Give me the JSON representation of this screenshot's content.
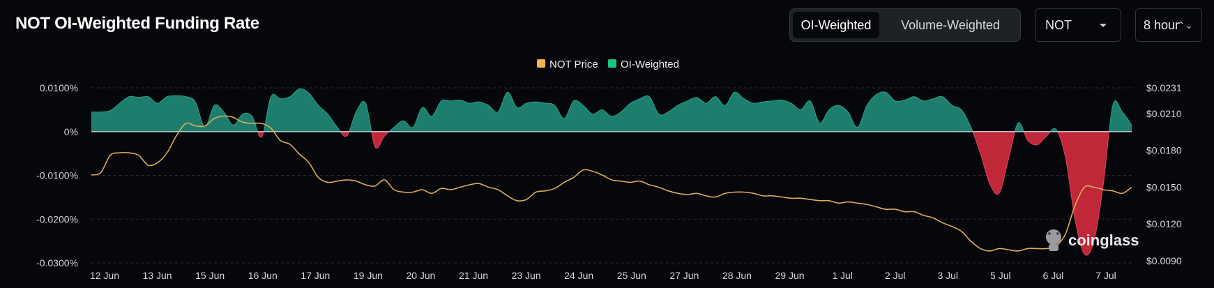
{
  "header": {
    "title": "NOT OI-Weighted Funding Rate",
    "tabs": [
      {
        "label": "OI-Weighted",
        "active": true
      },
      {
        "label": "Volume-Weighted",
        "active": false
      }
    ],
    "coin_select": "NOT",
    "interval_select": "8 hour"
  },
  "watermark": "coinglass",
  "colors": {
    "positive": "#1e7e6d",
    "negative": "#c0283a",
    "price_line": "#dcab5a",
    "legend_price": "#f0b54e",
    "legend_oi": "#17c784"
  },
  "chart_data": {
    "type": "area",
    "legend": [
      "NOT Price",
      "OI-Weighted"
    ],
    "x_tick_labels": [
      "12 Jun",
      "13 Jun",
      "15 Jun",
      "16 Jun",
      "17 Jun",
      "19 Jun",
      "20 Jun",
      "21 Jun",
      "23 Jun",
      "24 Jun",
      "25 Jun",
      "27 Jun",
      "28 Jun",
      "29 Jun",
      "1 Jul",
      "2 Jul",
      "3 Jul",
      "5 Jul",
      "6 Jul",
      "7 Jul"
    ],
    "y_left": {
      "ticks": [
        "0.0100%",
        "0%",
        "-0.0100%",
        "-0.0200%",
        "-0.0300%"
      ],
      "range": [
        -0.03,
        0.01
      ]
    },
    "y_right": {
      "ticks": [
        "$0.0231",
        "$0.0210",
        "$0.0180",
        "$0.0150",
        "$0.0120",
        "$0.0090"
      ]
    },
    "series": [
      {
        "name": "OI-Weighted",
        "unit": "%",
        "values": [
          0.0045,
          0.0045,
          0.0048,
          0.0065,
          0.008,
          0.0078,
          0.008,
          0.0065,
          0.008,
          0.0082,
          0.008,
          0.0068,
          0.001,
          0.006,
          0.0045,
          0.0015,
          0.004,
          0.0035,
          -0.0012,
          0.008,
          0.0075,
          0.008,
          0.0098,
          0.0088,
          0.006,
          0.004,
          0.001,
          -0.001,
          0.0045,
          0.0065,
          -0.0035,
          -0.001,
          0.001,
          0.0025,
          0.001,
          0.0055,
          0.0035,
          0.007,
          0.007,
          0.0072,
          0.0065,
          0.0068,
          0.006,
          0.0045,
          0.009,
          0.0055,
          0.0065,
          0.0068,
          0.0065,
          0.006,
          0.003,
          0.007,
          0.006,
          0.004,
          0.005,
          0.0035,
          0.0045,
          0.0065,
          0.0075,
          0.008,
          0.004,
          0.0045,
          0.006,
          0.007,
          0.0078,
          0.0065,
          0.008,
          0.006,
          0.009,
          0.0075,
          0.0065,
          0.0068,
          0.007,
          0.0072,
          0.0065,
          0.005,
          0.007,
          0.002,
          0.005,
          0.006,
          0.0045,
          0.001,
          0.006,
          0.0085,
          0.009,
          0.007,
          0.0072,
          0.008,
          0.007,
          0.0075,
          0.008,
          0.006,
          0.005,
          0.001,
          -0.005,
          -0.012,
          -0.014,
          -0.006,
          0.002,
          -0.002,
          -0.003,
          -0.001,
          0.0005,
          -0.006,
          -0.02,
          -0.028,
          -0.025,
          -0.012,
          0.006,
          0.0045,
          0.0015
        ],
        "color": "#1e7e6d"
      },
      {
        "name": "NOT Price",
        "unit": "$",
        "values": [
          0.016,
          0.0162,
          0.0176,
          0.0178,
          0.0178,
          0.0176,
          0.0168,
          0.017,
          0.0178,
          0.0192,
          0.0202,
          0.02,
          0.02,
          0.0206,
          0.0208,
          0.0207,
          0.0203,
          0.0202,
          0.0202,
          0.0198,
          0.0188,
          0.0185,
          0.0177,
          0.017,
          0.0158,
          0.0154,
          0.0155,
          0.0156,
          0.0155,
          0.0152,
          0.0151,
          0.0156,
          0.0148,
          0.0146,
          0.0146,
          0.0148,
          0.0145,
          0.0149,
          0.0148,
          0.015,
          0.0152,
          0.0153,
          0.015,
          0.0148,
          0.0143,
          0.0139,
          0.014,
          0.0146,
          0.0147,
          0.0149,
          0.0154,
          0.0158,
          0.0164,
          0.0163,
          0.016,
          0.0156,
          0.0155,
          0.0154,
          0.0155,
          0.0152,
          0.015,
          0.0147,
          0.0145,
          0.0144,
          0.0145,
          0.0143,
          0.0142,
          0.0145,
          0.0146,
          0.0146,
          0.0145,
          0.0143,
          0.0143,
          0.0142,
          0.0141,
          0.0141,
          0.014,
          0.0139,
          0.0139,
          0.0137,
          0.0138,
          0.0137,
          0.0136,
          0.0134,
          0.0132,
          0.0132,
          0.013,
          0.013,
          0.0127,
          0.0125,
          0.0121,
          0.0118,
          0.0114,
          0.0106,
          0.01,
          0.0098,
          0.01,
          0.0099,
          0.0098,
          0.01,
          0.01,
          0.01,
          0.0102,
          0.0112,
          0.0135,
          0.015,
          0.015,
          0.0148,
          0.0147,
          0.0145,
          0.015
        ],
        "color": "#dcab5a"
      }
    ]
  }
}
